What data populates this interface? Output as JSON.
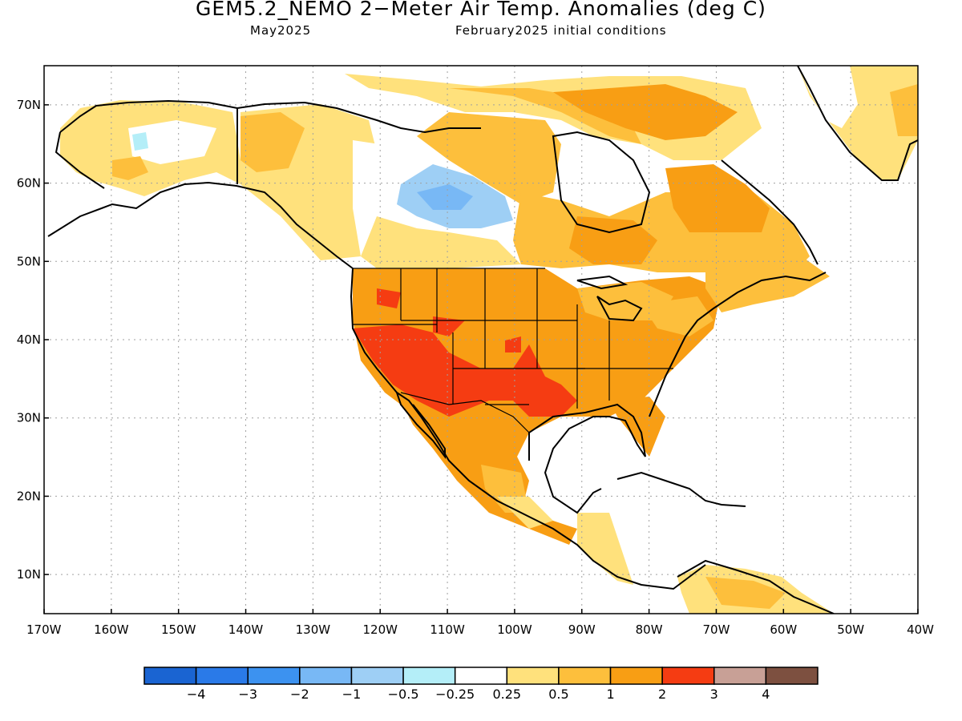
{
  "header": {
    "title": "GEM5.2_NEMO 2−Meter Air Temp. Anomalies (deg C)",
    "valid_month": "May2025",
    "initial_conditions": "February2025 initial conditions"
  },
  "map": {
    "lon_range": [
      -170,
      -40
    ],
    "lat_range": [
      5,
      75
    ],
    "lat_ticks": [
      {
        "value": 70,
        "label": "70N"
      },
      {
        "value": 60,
        "label": "60N"
      },
      {
        "value": 50,
        "label": "50N"
      },
      {
        "value": 40,
        "label": "40N"
      },
      {
        "value": 30,
        "label": "30N"
      },
      {
        "value": 20,
        "label": "20N"
      },
      {
        "value": 10,
        "label": "10N"
      }
    ],
    "lon_ticks": [
      {
        "value": -170,
        "label": "170W"
      },
      {
        "value": -160,
        "label": "160W"
      },
      {
        "value": -150,
        "label": "150W"
      },
      {
        "value": -140,
        "label": "140W"
      },
      {
        "value": -130,
        "label": "130W"
      },
      {
        "value": -120,
        "label": "120W"
      },
      {
        "value": -110,
        "label": "110W"
      },
      {
        "value": -100,
        "label": "100W"
      },
      {
        "value": -90,
        "label": "90W"
      },
      {
        "value": -80,
        "label": "80W"
      },
      {
        "value": -70,
        "label": "70W"
      },
      {
        "value": -60,
        "label": "60W"
      },
      {
        "value": -50,
        "label": "50W"
      },
      {
        "value": -40,
        "label": "40W"
      }
    ],
    "gridlines": "dotted"
  },
  "colorbar": {
    "colors": [
      "#1a64d2",
      "#2a7ae8",
      "#3c92f0",
      "#78b8f5",
      "#9ecff5",
      "#b4eef8",
      "#ffffff",
      "#ffe17c",
      "#fdbf3c",
      "#f89e14",
      "#f53c12",
      "#c8a096",
      "#7d5040"
    ],
    "labels": [
      "−4",
      "−3",
      "−2",
      "−1",
      "−0.5",
      "−0.25",
      "0.25",
      "0.5",
      "1",
      "2",
      "3",
      "4"
    ]
  }
}
